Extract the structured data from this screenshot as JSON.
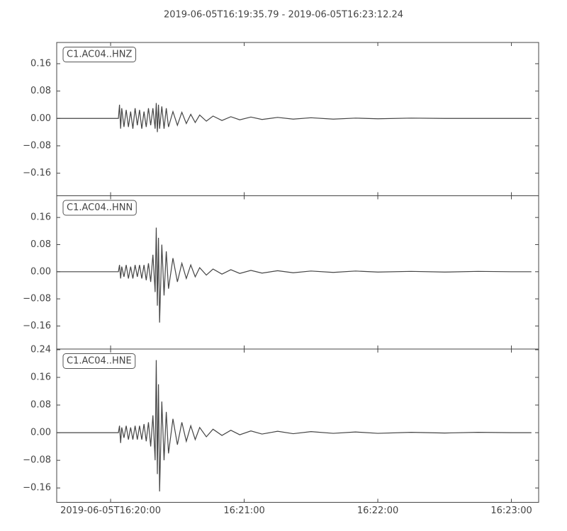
{
  "chart_data": [
    {
      "type": "line",
      "title": "2019-06-05T16:19:35.79  -  2019-06-05T16:23:12.24",
      "x": [
        36,
        63.5,
        64,
        64.5,
        65,
        66,
        67,
        68,
        69,
        70,
        71,
        72,
        73,
        74,
        75,
        76,
        77,
        78,
        79,
        80,
        80.5,
        81,
        81.5,
        82,
        83,
        84,
        85,
        86,
        88,
        90,
        92,
        94,
        96,
        98,
        100,
        103,
        106,
        110,
        114,
        118,
        123,
        128,
        135,
        142,
        150,
        160,
        170,
        180,
        195,
        210,
        225,
        240,
        249
      ],
      "series": [
        {
          "name": "C1.AC04..HNZ",
          "color": "#444444",
          "values": [
            0,
            0,
            0.04,
            -0.03,
            0.03,
            -0.025,
            0.025,
            -0.025,
            0.02,
            -0.03,
            0.03,
            -0.02,
            0.025,
            -0.03,
            0.02,
            -0.025,
            0.03,
            -0.02,
            0.03,
            -0.03,
            0.045,
            -0.04,
            0.04,
            -0.03,
            0.035,
            -0.03,
            0.03,
            -0.025,
            0.02,
            -0.02,
            0.018,
            -0.015,
            0.012,
            -0.012,
            0.01,
            -0.008,
            0.007,
            -0.006,
            0.005,
            -0.004,
            0.004,
            -0.003,
            0.003,
            -0.002,
            0.002,
            -0.002,
            0.001,
            -0.001,
            0.001,
            0,
            0,
            0,
            0
          ]
        }
      ],
      "xlim": [
        35.79,
        252.24
      ],
      "ylim": [
        -0.226,
        0.222
      ],
      "yticks": [
        {
          "value": 0.16,
          "label": "0.16"
        },
        {
          "value": 0.08,
          "label": "0.08"
        },
        {
          "value": 0,
          "label": "0.00"
        },
        {
          "value": -0.08,
          "label": "−0.08"
        },
        {
          "value": -0.16,
          "label": "−0.16"
        }
      ]
    },
    {
      "type": "line",
      "x": [
        36,
        63.5,
        64,
        64.5,
        65,
        66,
        67,
        68,
        69,
        70,
        71,
        72,
        73,
        74,
        75,
        76,
        77,
        78,
        79,
        80,
        80.5,
        81,
        81.5,
        82,
        83,
        84,
        85,
        86,
        88,
        90,
        92,
        94,
        96,
        98,
        100,
        103,
        106,
        110,
        114,
        118,
        123,
        128,
        135,
        142,
        150,
        160,
        170,
        180,
        195,
        210,
        225,
        240,
        249
      ],
      "series": [
        {
          "name": "C1.AC04..HNN",
          "color": "#444444",
          "values": [
            0,
            0,
            0.02,
            -0.02,
            0.015,
            -0.015,
            0.02,
            -0.02,
            0.015,
            -0.02,
            0.02,
            -0.015,
            0.02,
            -0.02,
            0.02,
            -0.025,
            0.025,
            -0.03,
            0.05,
            -0.06,
            0.13,
            -0.1,
            0.1,
            -0.15,
            0.08,
            -0.07,
            0.06,
            -0.05,
            0.04,
            -0.03,
            0.025,
            -0.02,
            0.02,
            -0.015,
            0.012,
            -0.01,
            0.008,
            -0.007,
            0.006,
            -0.005,
            0.004,
            -0.004,
            0.003,
            -0.003,
            0.002,
            -0.002,
            0.002,
            -0.001,
            0.001,
            -0.001,
            0.001,
            0,
            0
          ]
        }
      ],
      "xlim": [
        35.79,
        252.24
      ],
      "ylim": [
        -0.228,
        0.224
      ],
      "yticks": [
        {
          "value": 0.16,
          "label": "0.16"
        },
        {
          "value": 0.08,
          "label": "0.08"
        },
        {
          "value": 0,
          "label": "0.00"
        },
        {
          "value": -0.08,
          "label": "−0.08"
        },
        {
          "value": -0.16,
          "label": "−0.16"
        }
      ]
    },
    {
      "type": "line",
      "x": [
        36,
        63.5,
        64,
        64.5,
        65,
        66,
        67,
        68,
        69,
        70,
        71,
        72,
        73,
        74,
        75,
        76,
        77,
        78,
        79,
        80,
        80.5,
        81,
        81.5,
        82,
        83,
        84,
        85,
        86,
        88,
        90,
        92,
        94,
        96,
        98,
        100,
        103,
        106,
        110,
        114,
        118,
        123,
        128,
        135,
        142,
        150,
        160,
        170,
        180,
        195,
        210,
        225,
        240,
        249
      ],
      "series": [
        {
          "name": "C1.AC04..HNE",
          "color": "#444444",
          "values": [
            0,
            0,
            0.02,
            -0.03,
            0.015,
            -0.015,
            0.02,
            -0.02,
            0.015,
            -0.02,
            0.02,
            -0.02,
            0.02,
            -0.02,
            0.025,
            -0.025,
            0.03,
            -0.04,
            0.05,
            -0.08,
            0.21,
            -0.12,
            0.14,
            -0.17,
            0.09,
            -0.08,
            0.06,
            -0.06,
            0.04,
            -0.035,
            0.03,
            -0.025,
            0.02,
            -0.02,
            0.015,
            -0.012,
            0.01,
            -0.008,
            0.007,
            -0.006,
            0.005,
            -0.004,
            0.004,
            -0.003,
            0.003,
            -0.002,
            0.002,
            -0.002,
            0.001,
            -0.001,
            0.001,
            0,
            0
          ]
        }
      ],
      "xlim": [
        35.79,
        252.24
      ],
      "ylim": [
        -0.2016,
        0.242
      ],
      "yticks": [
        {
          "value": 0.24,
          "label": "0.24"
        },
        {
          "value": 0.16,
          "label": "0.16"
        },
        {
          "value": 0.08,
          "label": "0.08"
        },
        {
          "value": 0,
          "label": "0.00"
        },
        {
          "value": -0.08,
          "label": "−0.08"
        },
        {
          "value": -0.16,
          "label": "−0.16"
        }
      ],
      "xticks": [
        {
          "value": 60,
          "label": "2019-06-05T16:20:00"
        },
        {
          "value": 120,
          "label": "16:21:00"
        },
        {
          "value": 180,
          "label": "16:22:00"
        },
        {
          "value": 240,
          "label": "16:23:00"
        }
      ]
    }
  ]
}
